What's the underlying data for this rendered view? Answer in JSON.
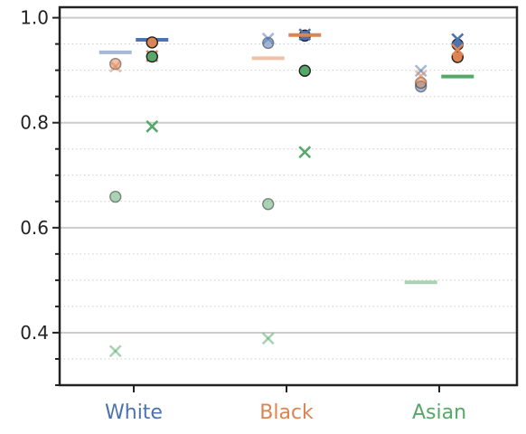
{
  "chart_data": {
    "type": "scatter",
    "title": "",
    "xlabel": "",
    "ylabel": "",
    "ylim": [
      0.3,
      1.02
    ],
    "yticks": [
      "0.4",
      "0.6",
      "0.8",
      "1.0"
    ],
    "ytick_values": [
      0.4,
      0.6,
      0.8,
      1.0
    ],
    "categories": [
      {
        "label": "White",
        "color": "#4c72b0"
      },
      {
        "label": "Black",
        "color": "#dd8452"
      },
      {
        "label": "Asian",
        "color": "#55a868"
      }
    ],
    "grid": "horizontal major solid, minor dotted",
    "marks": [
      {
        "kind": "line",
        "x": 0.88,
        "y": 0.934,
        "color": "#4c72b0",
        "alpha": 0.5
      },
      {
        "kind": "line",
        "x": 1.12,
        "y": 0.958,
        "color": "#4c72b0",
        "alpha": 1.0
      },
      {
        "kind": "circle",
        "x": 0.88,
        "y": 0.912,
        "color": "#dd8452",
        "alpha": 0.5
      },
      {
        "kind": "x",
        "x": 0.88,
        "y": 0.907,
        "color": "#dd8452",
        "alpha": 0.5
      },
      {
        "kind": "circle",
        "x": 1.12,
        "y": 0.953,
        "color": "#dd8452",
        "alpha": 1.0
      },
      {
        "kind": "x",
        "x": 1.12,
        "y": 0.927,
        "color": "#dd8452",
        "alpha": 1.0
      },
      {
        "kind": "circle",
        "x": 0.88,
        "y": 0.659,
        "color": "#55a868",
        "alpha": 0.5
      },
      {
        "kind": "x",
        "x": 0.88,
        "y": 0.365,
        "color": "#55a868",
        "alpha": 0.5
      },
      {
        "kind": "circle",
        "x": 1.12,
        "y": 0.926,
        "color": "#55a868",
        "alpha": 1.0
      },
      {
        "kind": "x",
        "x": 1.12,
        "y": 0.793,
        "color": "#55a868",
        "alpha": 1.0
      },
      {
        "kind": "circle",
        "x": 1.88,
        "y": 0.952,
        "color": "#4c72b0",
        "alpha": 0.5
      },
      {
        "kind": "x",
        "x": 1.88,
        "y": 0.96,
        "color": "#4c72b0",
        "alpha": 0.5
      },
      {
        "kind": "circle",
        "x": 2.12,
        "y": 0.966,
        "color": "#4c72b0",
        "alpha": 1.0
      },
      {
        "kind": "x",
        "x": 2.12,
        "y": 0.968,
        "color": "#4c72b0",
        "alpha": 1.0
      },
      {
        "kind": "line",
        "x": 1.88,
        "y": 0.923,
        "color": "#dd8452",
        "alpha": 0.5
      },
      {
        "kind": "line",
        "x": 2.12,
        "y": 0.967,
        "color": "#dd8452",
        "alpha": 1.0
      },
      {
        "kind": "circle",
        "x": 1.88,
        "y": 0.645,
        "color": "#55a868",
        "alpha": 0.5
      },
      {
        "kind": "x",
        "x": 1.88,
        "y": 0.389,
        "color": "#55a868",
        "alpha": 0.5
      },
      {
        "kind": "circle",
        "x": 2.12,
        "y": 0.899,
        "color": "#55a868",
        "alpha": 1.0
      },
      {
        "kind": "x",
        "x": 2.12,
        "y": 0.744,
        "color": "#55a868",
        "alpha": 1.0
      },
      {
        "kind": "circle",
        "x": 2.88,
        "y": 0.869,
        "color": "#4c72b0",
        "alpha": 0.5
      },
      {
        "kind": "x",
        "x": 2.88,
        "y": 0.899,
        "color": "#4c72b0",
        "alpha": 0.5
      },
      {
        "kind": "circle",
        "x": 3.12,
        "y": 0.949,
        "color": "#4c72b0",
        "alpha": 1.0
      },
      {
        "kind": "x",
        "x": 3.12,
        "y": 0.959,
        "color": "#4c72b0",
        "alpha": 1.0
      },
      {
        "kind": "circle",
        "x": 2.88,
        "y": 0.876,
        "color": "#dd8452",
        "alpha": 0.5
      },
      {
        "kind": "x",
        "x": 2.88,
        "y": 0.889,
        "color": "#dd8452",
        "alpha": 0.5
      },
      {
        "kind": "circle",
        "x": 3.12,
        "y": 0.925,
        "color": "#dd8452",
        "alpha": 1.0
      },
      {
        "kind": "x",
        "x": 3.12,
        "y": 0.939,
        "color": "#dd8452",
        "alpha": 1.0
      },
      {
        "kind": "line",
        "x": 2.88,
        "y": 0.496,
        "color": "#55a868",
        "alpha": 0.5
      },
      {
        "kind": "line",
        "x": 3.12,
        "y": 0.888,
        "color": "#55a868",
        "alpha": 1.0
      }
    ]
  }
}
